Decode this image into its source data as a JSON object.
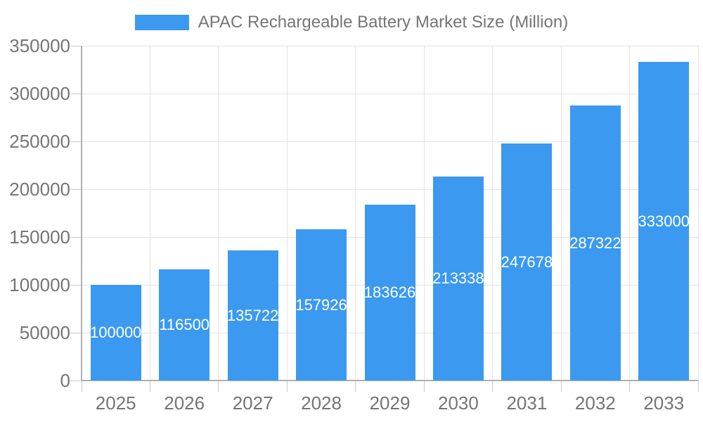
{
  "page": {
    "background": "#ffffff"
  },
  "chart_data": {
    "type": "bar",
    "title": "APAC Rechargeable Battery Market Size (Million)",
    "categories": [
      "2025",
      "2026",
      "2027",
      "2028",
      "2029",
      "2030",
      "2031",
      "2032",
      "2033"
    ],
    "values": [
      100000,
      116500,
      135722,
      157926,
      183626,
      213338,
      247678,
      287322,
      333000
    ],
    "bar_labels": [
      "100000",
      "116500",
      "135722",
      "157926",
      "183626",
      "213338",
      "247678",
      "287322",
      "333000"
    ],
    "xlabel": "",
    "ylabel": "",
    "ylim": [
      0,
      350000
    ],
    "yticks": [
      0,
      50000,
      100000,
      150000,
      200000,
      250000,
      300000,
      350000
    ],
    "ytick_labels": [
      "0",
      "50000",
      "100000",
      "150000",
      "200000",
      "250000",
      "300000",
      "350000"
    ],
    "grid": "horizontal lines at each ytick, vertical lines at category boundaries",
    "legend_position": "top-center",
    "colors": {
      "bar": "#3B99F0",
      "bar_label_text": "#FFFFFF",
      "axis_text": "#757575",
      "gridline": "#E3E3E3",
      "axis_line": "#B0B0B0",
      "tick_mark": "#C9C9C9",
      "background": "#FFFFFF"
    }
  }
}
